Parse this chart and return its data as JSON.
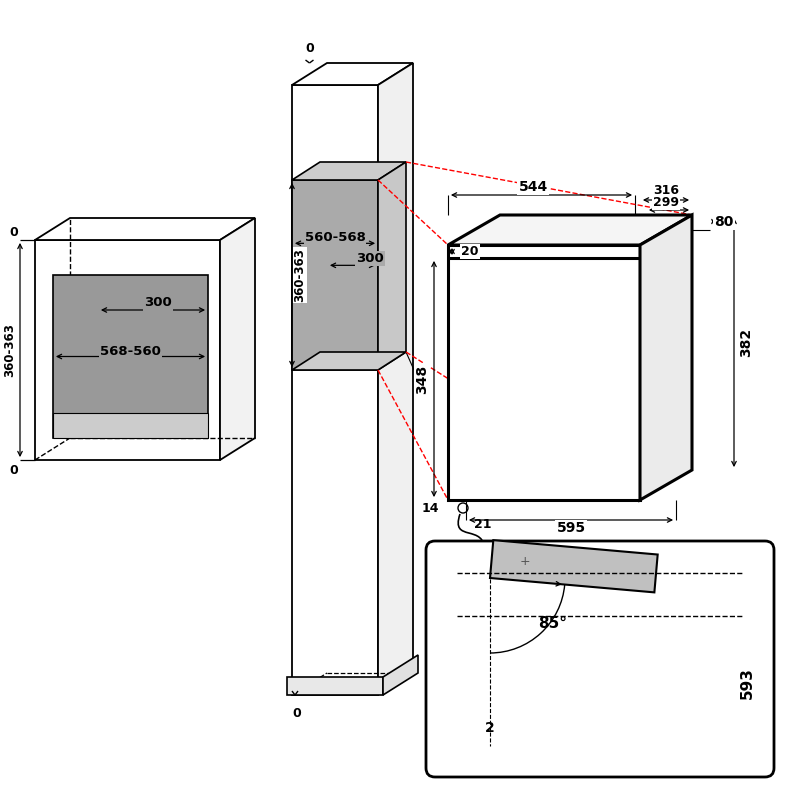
{
  "bg": "#ffffff",
  "lc": "#000000",
  "rc": "#ff0000",
  "gray_dark": "#999999",
  "gray_light": "#cccccc",
  "gray_niche_back": "#bbbbbb",
  "gray_mid_niche": "#aaaaaa",
  "gray_door": "#c0c0c0",
  "dims": {
    "360_363": "360-363",
    "568_560": "568-560",
    "300a": "300",
    "560_568": "560-568",
    "300b": "300",
    "360_363b": "360-363",
    "544": "544",
    "316": "316",
    "299": "299",
    "20": "20",
    "80": "80",
    "382": "382",
    "348": "348",
    "14": "14",
    "21": "21",
    "595": "595",
    "85deg": "85°",
    "593": "593",
    "2": "2"
  }
}
